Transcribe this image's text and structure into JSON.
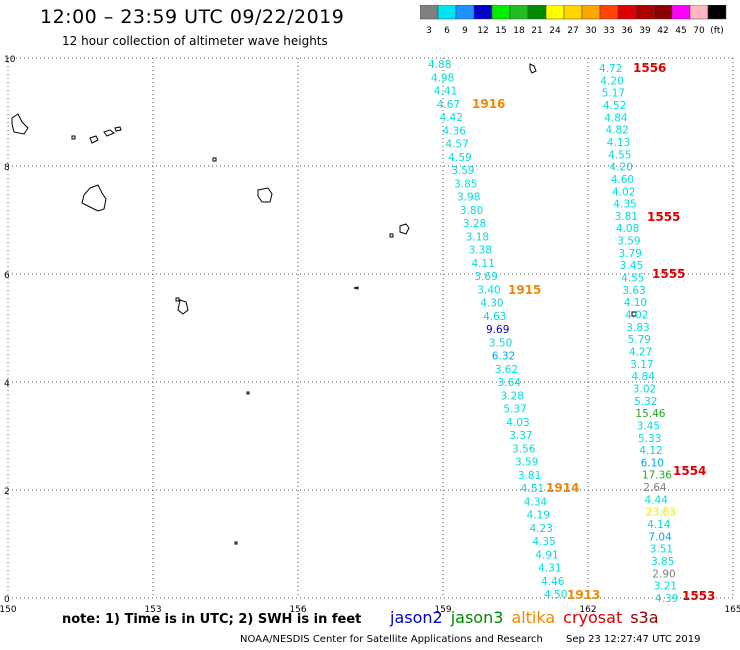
{
  "header": {
    "title": "12:00 – 23:59 UTC 09/22/2019",
    "subtitle": "12 hour collection of altimeter wave heights"
  },
  "legend": {
    "labels": [
      "3",
      "6",
      "9",
      "12",
      "15",
      "18",
      "21",
      "24",
      "27",
      "30",
      "33",
      "36",
      "39",
      "42",
      "45",
      "70",
      "(ft)"
    ],
    "colors": [
      "#808080",
      "#00e5ee",
      "#1e90ff",
      "#0000cd",
      "#00ee00",
      "#22bb22",
      "#008b00",
      "#ffff00",
      "#ffd700",
      "#ffa500",
      "#ff4500",
      "#dd0000",
      "#aa0000",
      "#8b0000",
      "#ff00ff",
      "#ffb6c1",
      "#000000"
    ]
  },
  "axes": {
    "x_ticks": [
      "150",
      "153",
      "156",
      "159",
      "162",
      "165"
    ],
    "y_ticks": [
      "0",
      "2",
      "4",
      "6",
      "8",
      "10"
    ]
  },
  "track_a": {
    "readings": [
      {
        "value": "4.88",
        "color": "#00dddd"
      },
      {
        "value": "4.98",
        "color": "#00dddd"
      },
      {
        "value": "4.41",
        "color": "#00dddd"
      },
      {
        "value": "4.67",
        "color": "#00dddd"
      },
      {
        "value": "4.42",
        "color": "#00dddd"
      },
      {
        "value": "4.36",
        "color": "#00dddd"
      },
      {
        "value": "4.57",
        "color": "#00dddd"
      },
      {
        "value": "4.59",
        "color": "#00dddd"
      },
      {
        "value": "3.59",
        "color": "#00dddd"
      },
      {
        "value": "3.85",
        "color": "#00dddd"
      },
      {
        "value": "3.98",
        "color": "#00dddd"
      },
      {
        "value": "3.80",
        "color": "#00dddd"
      },
      {
        "value": "3.28",
        "color": "#00dddd"
      },
      {
        "value": "3.18",
        "color": "#00dddd"
      },
      {
        "value": "3.38",
        "color": "#00dddd"
      },
      {
        "value": "4.11",
        "color": "#00dddd"
      },
      {
        "value": "3.69",
        "color": "#00dddd"
      },
      {
        "value": "3.40",
        "color": "#00dddd"
      },
      {
        "value": "4.30",
        "color": "#00dddd"
      },
      {
        "value": "4.63",
        "color": "#00dddd"
      },
      {
        "value": "9.69",
        "color": "#0000cc"
      },
      {
        "value": "3.50",
        "color": "#00dddd"
      },
      {
        "value": "6.32",
        "color": "#00aaee"
      },
      {
        "value": "3.62",
        "color": "#00dddd"
      },
      {
        "value": "3.64",
        "color": "#00dddd"
      },
      {
        "value": "3.28",
        "color": "#00dddd"
      },
      {
        "value": "5.37",
        "color": "#00dddd"
      },
      {
        "value": "4.03",
        "color": "#00dddd"
      },
      {
        "value": "3.37",
        "color": "#00dddd"
      },
      {
        "value": "3.56",
        "color": "#00dddd"
      },
      {
        "value": "3.59",
        "color": "#00dddd"
      },
      {
        "value": "3.81",
        "color": "#00dddd"
      },
      {
        "value": "4.51",
        "color": "#00dddd"
      },
      {
        "value": "4.34",
        "color": "#00dddd"
      },
      {
        "value": "4.19",
        "color": "#00dddd"
      },
      {
        "value": "4.23",
        "color": "#00dddd"
      },
      {
        "value": "4.35",
        "color": "#00dddd"
      },
      {
        "value": "4.91",
        "color": "#00dddd"
      },
      {
        "value": "4.31",
        "color": "#00dddd"
      },
      {
        "value": "4.46",
        "color": "#00dddd"
      },
      {
        "value": "4.50",
        "color": "#00dddd"
      }
    ],
    "time_labels": [
      {
        "text": "1916",
        "color": "#ee8800"
      },
      {
        "text": "1915",
        "color": "#ee8800"
      },
      {
        "text": "1914",
        "color": "#ee8800"
      },
      {
        "text": "1913",
        "color": "#ee8800"
      }
    ]
  },
  "track_b": {
    "readings": [
      {
        "value": "4.72",
        "color": "#00dddd"
      },
      {
        "value": "4.20",
        "color": "#00dddd"
      },
      {
        "value": "5.17",
        "color": "#00dddd"
      },
      {
        "value": "4.52",
        "color": "#00dddd"
      },
      {
        "value": "4.84",
        "color": "#00dddd"
      },
      {
        "value": "4.82",
        "color": "#00dddd"
      },
      {
        "value": "4.13",
        "color": "#00dddd"
      },
      {
        "value": "4.55",
        "color": "#00dddd"
      },
      {
        "value": "4.20",
        "color": "#00dddd"
      },
      {
        "value": "4.60",
        "color": "#00dddd"
      },
      {
        "value": "4.02",
        "color": "#00dddd"
      },
      {
        "value": "4.35",
        "color": "#00dddd"
      },
      {
        "value": "3.81",
        "color": "#00dddd"
      },
      {
        "value": "4.08",
        "color": "#00dddd"
      },
      {
        "value": "3.59",
        "color": "#00dddd"
      },
      {
        "value": "3.79",
        "color": "#00dddd"
      },
      {
        "value": "3.45",
        "color": "#00dddd"
      },
      {
        "value": "4.55",
        "color": "#00dddd"
      },
      {
        "value": "3.63",
        "color": "#00dddd"
      },
      {
        "value": "4.10",
        "color": "#00dddd"
      },
      {
        "value": "4.02",
        "color": "#00dddd"
      },
      {
        "value": "3.83",
        "color": "#00dddd"
      },
      {
        "value": "5.79",
        "color": "#00dddd"
      },
      {
        "value": "4.27",
        "color": "#00dddd"
      },
      {
        "value": "3.17",
        "color": "#00dddd"
      },
      {
        "value": "4.84",
        "color": "#00dddd"
      },
      {
        "value": "3.02",
        "color": "#00dddd"
      },
      {
        "value": "5.32",
        "color": "#00dddd"
      },
      {
        "value": "15.46",
        "color": "#22aa22"
      },
      {
        "value": "3.45",
        "color": "#00dddd"
      },
      {
        "value": "5.33",
        "color": "#00dddd"
      },
      {
        "value": "4.12",
        "color": "#00dddd"
      },
      {
        "value": "6.10",
        "color": "#00aaee"
      },
      {
        "value": "17.36",
        "color": "#22aa22"
      },
      {
        "value": "2.64",
        "color": "#808080"
      },
      {
        "value": "4.44",
        "color": "#00dddd"
      },
      {
        "value": "23.63",
        "color": "#eeee00"
      },
      {
        "value": "4.14",
        "color": "#00dddd"
      },
      {
        "value": "7.04",
        "color": "#00aaee"
      },
      {
        "value": "3.51",
        "color": "#00dddd"
      },
      {
        "value": "3.85",
        "color": "#00dddd"
      },
      {
        "value": "2.90",
        "color": "#808080"
      },
      {
        "value": "3.21",
        "color": "#00dddd"
      },
      {
        "value": "4.39",
        "color": "#00dddd"
      }
    ],
    "time_labels": [
      {
        "text": "1556",
        "color": "#dd0000"
      },
      {
        "text": "1555",
        "color": "#dd0000"
      },
      {
        "text": "1555",
        "color": "#dd0000"
      },
      {
        "text": "1554",
        "color": "#dd0000"
      },
      {
        "text": "1553",
        "color": "#dd0000"
      }
    ]
  },
  "footer": {
    "note": "note:  1) Time is in UTC;  2) SWH is in feet",
    "satellites": [
      {
        "name": "jason2",
        "color": "#0000cc"
      },
      {
        "name": "jason3",
        "color": "#008800"
      },
      {
        "name": "altika",
        "color": "#ee8800"
      },
      {
        "name": "cryosat",
        "color": "#dd0000"
      },
      {
        "name": "s3a",
        "color": "#8b0000"
      }
    ],
    "credit": "NOAA/NESDIS Center for Satellite Applications and Research",
    "timestamp": "Sep 23 12:27:47 UTC 2019"
  }
}
